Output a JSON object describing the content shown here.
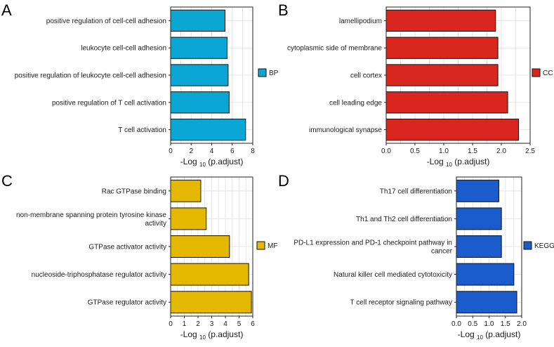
{
  "chart_data": [
    {
      "panel": "A",
      "type": "bar",
      "orientation": "horizontal",
      "categories": [
        "positive regulation of cell-cell adhesion",
        "leukocyte cell-cell adhesion",
        "positive regulation of leukocyte cell-cell adhesion",
        "positive regulation of T cell activation",
        "T cell activation"
      ],
      "values": [
        5.3,
        5.5,
        5.6,
        5.7,
        7.3
      ],
      "xlim": [
        0,
        8
      ],
      "xticks": [
        "0",
        "2",
        "4",
        "6",
        "8"
      ],
      "xticks_values": [
        0,
        2,
        4,
        6,
        8
      ],
      "xlabel": "-Log",
      "xlabel_sub": "10",
      "xlabel_suffix": "(p.adjust)",
      "legend": "BP",
      "color": "#0aa6d4"
    },
    {
      "panel": "B",
      "type": "bar",
      "orientation": "horizontal",
      "categories": [
        "lamellipodium",
        "cytoplasmic side of membrane",
        "cell cortex",
        "cell leading edge",
        "immunological synapse"
      ],
      "values": [
        1.9,
        1.94,
        1.94,
        2.11,
        2.3
      ],
      "xlim": [
        0,
        2.5
      ],
      "xticks": [
        "0.0",
        "0.5",
        "1.0",
        "1.5",
        "2.0",
        "2.5"
      ],
      "xticks_values": [
        0,
        0.5,
        1.0,
        1.5,
        2.0,
        2.5
      ],
      "xlabel": "-Log",
      "xlabel_sub": "10",
      "xlabel_suffix": "(p.adjust)",
      "legend": "CC",
      "color": "#d9261f"
    },
    {
      "panel": "C",
      "type": "bar",
      "orientation": "horizontal",
      "categories": [
        "Rac GTPase binding",
        "non-membrane spanning protein tyrosine kinase activity",
        "GTPase activator activity",
        "nucleoside-triphosphatase regulator activity",
        "GTPase regulator activity"
      ],
      "category_lines": [
        [
          "Rac GTPase binding"
        ],
        [
          "non-membrane spanning protein tyrosine kinase",
          "activity"
        ],
        [
          "GTPase activator activity"
        ],
        [
          "nucleoside-triphosphatase regulator activity"
        ],
        [
          "GTPase regulator activity"
        ]
      ],
      "values": [
        2.2,
        2.6,
        4.3,
        5.7,
        5.9
      ],
      "xlim": [
        0,
        6
      ],
      "xticks": [
        "0",
        "1",
        "2",
        "3",
        "4",
        "5",
        "6"
      ],
      "xticks_values": [
        0,
        1,
        2,
        3,
        4,
        5,
        6
      ],
      "xlabel": "-Log",
      "xlabel_sub": "10",
      "xlabel_suffix": "(p.adjust)",
      "legend": "MF",
      "color": "#e5b800"
    },
    {
      "panel": "D",
      "type": "bar",
      "orientation": "horizontal",
      "categories": [
        "Th17 cell differentiation",
        "Th1 and Th2 cell differentiation",
        "PD-L1 expression and PD-1 checkpoint pathway in cancer",
        "Natural killer cell mediated cytotoxicity",
        "T cell receptor signaling pathway"
      ],
      "category_lines": [
        [
          "Th17 cell differentiation"
        ],
        [
          "Th1 and Th2 cell differentiation"
        ],
        [
          "PD-L1 expression and PD-1 checkpoint pathway in",
          "cancer"
        ],
        [
          "Natural killer cell mediated cytotoxicity"
        ],
        [
          "T cell receptor signaling pathway"
        ]
      ],
      "values": [
        1.3,
        1.38,
        1.38,
        1.76,
        1.85
      ],
      "xlim": [
        0,
        2.0
      ],
      "xticks": [
        "0.0",
        "0.5",
        "1.0",
        "1.5",
        "2.0"
      ],
      "xticks_values": [
        0,
        0.5,
        1.0,
        1.5,
        2.0
      ],
      "xlabel": "-Log",
      "xlabel_sub": "10",
      "xlabel_suffix": "(p.adjust)",
      "legend": "KEGG",
      "color": "#1a5ccc"
    }
  ]
}
